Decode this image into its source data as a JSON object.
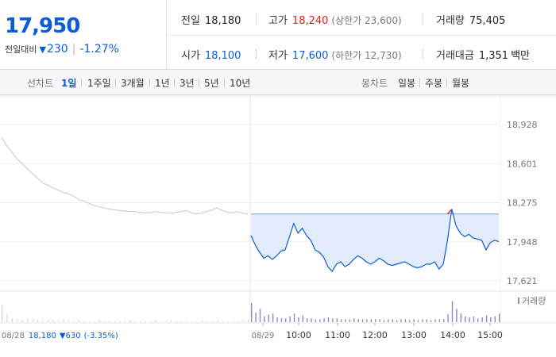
{
  "header": {
    "price": "17,950",
    "change_label": "전일대비",
    "change_value": "230",
    "change_rate": "-1.27%",
    "prev_close": {
      "label": "전일",
      "value": "18,180"
    },
    "open": {
      "label": "시가",
      "value": "18,100"
    },
    "high": {
      "label": "고가",
      "value": "18,240",
      "limit_label": "(상한가 23,600)"
    },
    "low": {
      "label": "저가",
      "value": "17,600",
      "limit_label": "(하한가 12,730)"
    },
    "volume": {
      "label": "거래량",
      "value": "75,405"
    },
    "amount": {
      "label": "거래대금",
      "value": "1,351",
      "unit": "백만"
    }
  },
  "tabs": {
    "line_label": "선차트",
    "line_items": [
      "1일",
      "1주일",
      "3개월",
      "1년",
      "3년",
      "5년",
      "10년"
    ],
    "active_line": "1일",
    "candle_label": "봉차트",
    "candle_items": [
      "일봉",
      "주봉",
      "월봉"
    ]
  },
  "colors": {
    "rise": "#e01c1c",
    "fall": "#0c5bd8",
    "area_fill": "#e3ecfa",
    "prev_line": "#c8c8c8",
    "volume_bar": "#9a86c0"
  },
  "chart_data": {
    "type": "area",
    "y_ticks": [
      "18,928",
      "18,601",
      "18,275",
      "17,948",
      "17,621"
    ],
    "ylim": [
      17621,
      18928
    ],
    "x_ticks": [
      "08/29",
      "10:00",
      "11:00",
      "12:00",
      "13:00",
      "14:00",
      "15:00"
    ],
    "prev_day_label": "08/28",
    "prev_day_info": {
      "close": "18,180",
      "change": "▼630",
      "rate": "(-3.35%)"
    },
    "volume_legend": "거래량",
    "baseline": 18180,
    "prev_day_series": [
      18820,
      18750,
      18700,
      18640,
      18600,
      18560,
      18520,
      18480,
      18440,
      18420,
      18400,
      18380,
      18360,
      18350,
      18330,
      18300,
      18290,
      18270,
      18250,
      18240,
      18230,
      18220,
      18215,
      18210,
      18205,
      18200,
      18200,
      18195,
      18190,
      18190,
      18200,
      18195,
      18190,
      18185,
      18195,
      18200,
      18210,
      18190,
      18180,
      18185,
      18200,
      18215,
      18230,
      18210,
      18195,
      18190,
      18200,
      18185,
      18180
    ],
    "today_series": [
      18000,
      17920,
      17860,
      17810,
      17830,
      17800,
      17830,
      17870,
      17880,
      17990,
      18100,
      18020,
      18060,
      18000,
      17960,
      17880,
      17860,
      17820,
      17740,
      17700,
      17760,
      17780,
      17740,
      17760,
      17800,
      17830,
      17810,
      17780,
      17760,
      17780,
      17810,
      17790,
      17760,
      17750,
      17760,
      17770,
      17780,
      17760,
      17740,
      17730,
      17740,
      17760,
      17760,
      17780,
      17720,
      17760,
      17960,
      18220,
      18080,
      18020,
      17990,
      18010,
      17980,
      17970,
      17960,
      17880,
      17940,
      17960,
      17950
    ],
    "prev_volume": [
      18,
      8,
      4,
      3,
      2,
      4,
      3,
      2,
      2,
      2,
      2,
      1,
      3,
      2,
      1,
      2,
      1,
      1,
      1,
      2,
      1,
      1,
      1,
      1,
      1,
      2,
      1,
      1,
      1,
      1,
      2,
      1,
      1,
      2,
      1,
      1,
      1,
      1,
      1,
      2,
      1,
      1,
      2,
      1,
      1,
      1,
      1,
      2,
      3
    ],
    "today_volume": [
      20,
      10,
      14,
      6,
      8,
      9,
      5,
      4,
      4,
      6,
      9,
      5,
      7,
      4,
      4,
      3,
      3,
      4,
      5,
      4,
      4,
      3,
      3,
      3,
      4,
      3,
      3,
      3,
      3,
      3,
      3,
      2,
      3,
      3,
      2,
      3,
      3,
      2,
      3,
      2,
      3,
      3,
      2,
      3,
      3,
      3,
      8,
      22,
      14,
      9,
      6,
      5,
      6,
      4,
      5,
      7,
      5,
      6,
      9
    ]
  }
}
